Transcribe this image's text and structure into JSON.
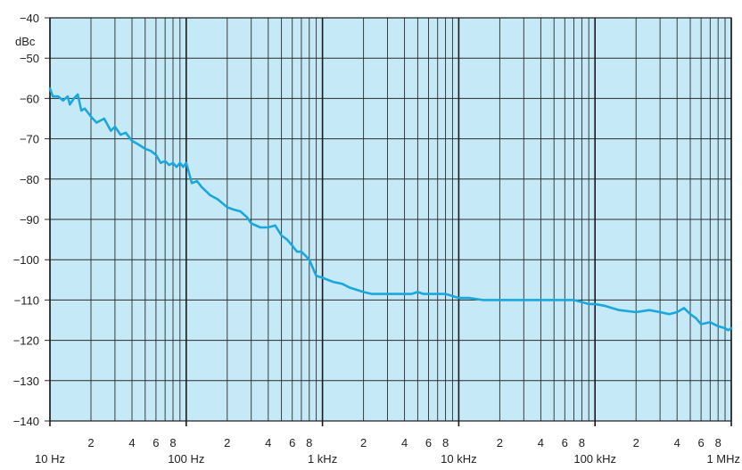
{
  "chart_data": {
    "type": "line",
    "title": "",
    "xlabel": "",
    "ylabel": "dBc",
    "x_scale": "log",
    "xlim": [
      10,
      1000000
    ],
    "ylim": [
      -140,
      -40
    ],
    "grid": true,
    "y_ticks": [
      {
        "value": -40,
        "label": "−40"
      },
      {
        "value": -50,
        "label": "−50"
      },
      {
        "value": -60,
        "label": "−60"
      },
      {
        "value": -70,
        "label": "−70"
      },
      {
        "value": -80,
        "label": "−80"
      },
      {
        "value": -90,
        "label": "−90"
      },
      {
        "value": -100,
        "label": "−100"
      },
      {
        "value": -110,
        "label": "−110"
      },
      {
        "value": -120,
        "label": "−120"
      },
      {
        "value": -130,
        "label": "−130"
      },
      {
        "value": -140,
        "label": "−140"
      }
    ],
    "x_major_ticks": [
      {
        "value": 10,
        "label": "10 Hz"
      },
      {
        "value": 100,
        "label": "100 Hz"
      },
      {
        "value": 1000,
        "label": "1 kHz"
      },
      {
        "value": 10000,
        "label": "10 kHz"
      },
      {
        "value": 100000,
        "label": "100 kHz"
      },
      {
        "value": 1000000,
        "label": "1 MHz"
      }
    ],
    "x_minor_tick_labels": [
      {
        "value": 20,
        "label": "2"
      },
      {
        "value": 40,
        "label": "4"
      },
      {
        "value": 60,
        "label": "6"
      },
      {
        "value": 80,
        "label": "8"
      },
      {
        "value": 200,
        "label": "2"
      },
      {
        "value": 400,
        "label": "4"
      },
      {
        "value": 600,
        "label": "6"
      },
      {
        "value": 800,
        "label": "8"
      },
      {
        "value": 2000,
        "label": "2"
      },
      {
        "value": 4000,
        "label": "4"
      },
      {
        "value": 6000,
        "label": "6"
      },
      {
        "value": 8000,
        "label": "8"
      },
      {
        "value": 20000,
        "label": "2"
      },
      {
        "value": 40000,
        "label": "4"
      },
      {
        "value": 60000,
        "label": "6"
      },
      {
        "value": 80000,
        "label": "8"
      },
      {
        "value": 200000,
        "label": "2"
      },
      {
        "value": 400000,
        "label": "4"
      },
      {
        "value": 600000,
        "label": "6"
      },
      {
        "value": 800000,
        "label": "8"
      }
    ],
    "series": [
      {
        "color": "#1aa7dd",
        "x": [
          10,
          10.5,
          11.5,
          12.5,
          13.5,
          14,
          15,
          16,
          17,
          18,
          20,
          22,
          25,
          28,
          30,
          33,
          36,
          40,
          45,
          50,
          55,
          60,
          65,
          70,
          75,
          80,
          85,
          90,
          95,
          100,
          110,
          120,
          130,
          140,
          150,
          170,
          200,
          220,
          250,
          280,
          300,
          350,
          400,
          450,
          500,
          550,
          600,
          650,
          700,
          750,
          800,
          900,
          1000,
          1200,
          1400,
          1600,
          1800,
          2000,
          2300,
          2600,
          3000,
          3500,
          4000,
          4500,
          5000,
          5500,
          6000,
          7000,
          8000,
          9000,
          10000,
          12000,
          15000,
          20000,
          25000,
          30000,
          35000,
          40000,
          45000,
          50000,
          60000,
          70000,
          80000,
          90000,
          100000,
          120000,
          150000,
          200000,
          250000,
          300000,
          350000,
          400000,
          450000,
          500000,
          550000,
          600000,
          700000,
          800000,
          900000,
          950000,
          1000000
        ],
        "y": [
          -57.5,
          -59.5,
          -59.5,
          -60.5,
          -59.5,
          -61.5,
          -60,
          -59,
          -63,
          -62.5,
          -64.5,
          -66,
          -65,
          -68,
          -67,
          -69,
          -68.5,
          -70.5,
          -71.5,
          -72.5,
          -73,
          -74,
          -76,
          -75.5,
          -76.5,
          -76,
          -77,
          -76,
          -77,
          -76,
          -81,
          -80.5,
          -82,
          -83,
          -84,
          -85,
          -87,
          -87.5,
          -88,
          -89.5,
          -91,
          -92,
          -92,
          -91.5,
          -94,
          -95,
          -96.5,
          -98,
          -98,
          -99,
          -100,
          -104,
          -104.5,
          -105.5,
          -106,
          -107,
          -107.5,
          -108,
          -108.5,
          -108.5,
          -108.5,
          -108.5,
          -108.5,
          -108.5,
          -108,
          -108.5,
          -108.5,
          -108.5,
          -108.5,
          -109,
          -109.5,
          -109.5,
          -110,
          -110,
          -110,
          -110,
          -110,
          -110,
          -110,
          -110,
          -110,
          -110,
          -110.5,
          -111,
          -111,
          -111.5,
          -112.5,
          -113,
          -112.5,
          -113,
          -113.5,
          -113,
          -112,
          -113.5,
          -114.5,
          -116,
          -115.5,
          -116.5,
          -117,
          -117.5,
          -117
        ]
      }
    ]
  }
}
